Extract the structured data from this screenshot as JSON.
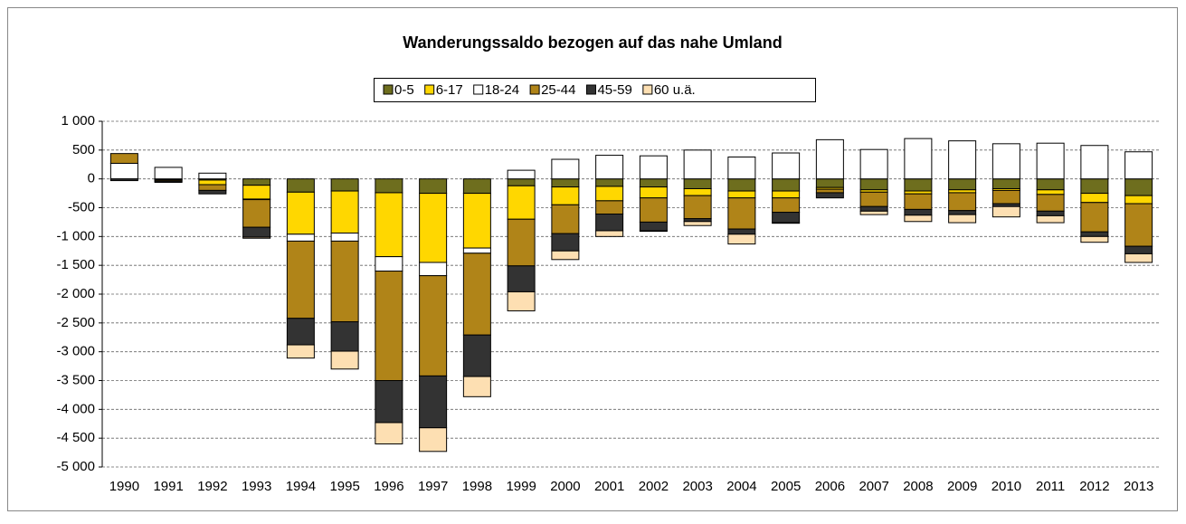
{
  "chart_data": {
    "type": "stacked_bar",
    "title": "Wanderungssaldo bezogen auf das nahe Umland",
    "categories": [
      "1990",
      "1991",
      "1992",
      "1993",
      "1994",
      "1995",
      "1996",
      "1997",
      "1998",
      "1999",
      "2000",
      "2001",
      "2002",
      "2003",
      "2004",
      "2005",
      "2006",
      "2007",
      "2008",
      "2009",
      "2010",
      "2011",
      "2012",
      "2013"
    ],
    "series": [
      {
        "name": "0-5",
        "color": "#6e6e1e",
        "values": [
          0,
          -10,
          -20,
          -110,
          -230,
          -210,
          -240,
          -250,
          -250,
          -120,
          -140,
          -130,
          -140,
          -170,
          -210,
          -210,
          -150,
          -190,
          -210,
          -190,
          -170,
          -190,
          -250,
          -290
        ]
      },
      {
        "name": "6-17",
        "color": "#ffd700",
        "values": [
          0,
          -10,
          -80,
          -240,
          -730,
          -730,
          -1110,
          -1200,
          -950,
          -580,
          -310,
          -250,
          -190,
          -120,
          -120,
          -120,
          -30,
          -40,
          -50,
          -50,
          -30,
          -80,
          -160,
          -140
        ]
      },
      {
        "name": "18-24",
        "color": "#ffffff",
        "values": [
          270,
          200,
          100,
          -10,
          -120,
          -140,
          -250,
          -230,
          -90,
          150,
          340,
          410,
          400,
          500,
          380,
          450,
          680,
          510,
          700,
          660,
          610,
          620,
          580,
          470
        ]
      },
      {
        "name": "25-44",
        "color": "#b08418",
        "values": [
          170,
          -20,
          -100,
          -480,
          -1340,
          -1400,
          -1900,
          -1740,
          -1420,
          -810,
          -500,
          -230,
          -420,
          -400,
          -540,
          -250,
          -60,
          -250,
          -270,
          -310,
          -230,
          -290,
          -510,
          -740
        ]
      },
      {
        "name": "45-59",
        "color": "#333333",
        "values": [
          -30,
          -20,
          -60,
          -170,
          -460,
          -510,
          -730,
          -900,
          -720,
          -450,
          -300,
          -290,
          -150,
          -50,
          -90,
          -180,
          -90,
          -80,
          -100,
          -70,
          -50,
          -80,
          -80,
          -130
        ]
      },
      {
        "name": "60 u.ä.",
        "color": "#fddfb2",
        "values": [
          0,
          0,
          0,
          -20,
          -230,
          -310,
          -370,
          -410,
          -350,
          -330,
          -150,
          -100,
          -10,
          -70,
          -170,
          -10,
          0,
          -60,
          -110,
          -140,
          -180,
          -120,
          -100,
          -150
        ]
      }
    ],
    "ylim": [
      -5000,
      1000
    ],
    "yticks": [
      {
        "value": 1000,
        "label": "1 000"
      },
      500,
      0,
      -500,
      {
        "value": -1000,
        "label": "-1 000"
      },
      {
        "value": -1500,
        "label": "-1 500"
      },
      {
        "value": -2000,
        "label": "-2 000"
      },
      {
        "value": -2500,
        "label": "-2 500"
      },
      {
        "value": -3000,
        "label": "-3 000"
      },
      {
        "value": -3500,
        "label": "-3 500"
      },
      {
        "value": -4000,
        "label": "-4 000"
      },
      {
        "value": -4500,
        "label": "-4 500"
      },
      {
        "value": -5000,
        "label": "-5 000"
      }
    ],
    "grid": true,
    "legend": "top"
  }
}
